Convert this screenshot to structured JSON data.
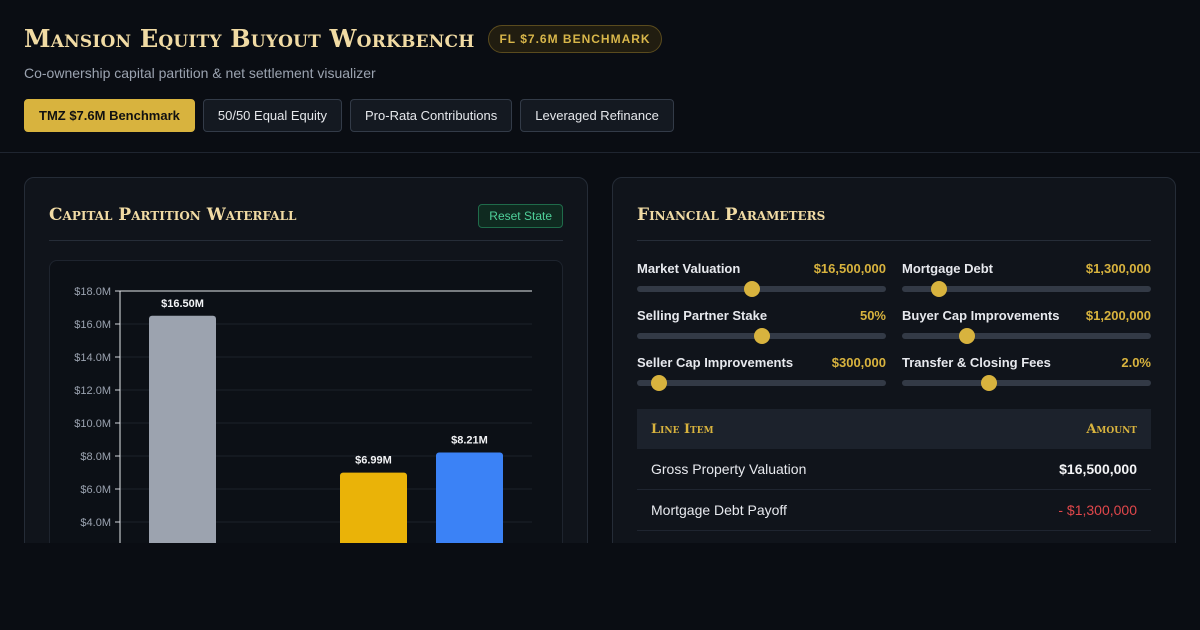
{
  "header": {
    "title": "Mansion Equity Buyout Workbench",
    "badge": "FL $7.6M BENCHMARK",
    "subtitle": "Co-ownership capital partition & net settlement visualizer",
    "scenarios": [
      {
        "label": "TMZ $7.6M Benchmark",
        "active": true
      },
      {
        "label": "50/50 Equal Equity",
        "active": false
      },
      {
        "label": "Pro-Rata Contributions",
        "active": false
      },
      {
        "label": "Leveraged Refinance",
        "active": false
      }
    ]
  },
  "waterfall_panel": {
    "title": "Capital Partition Waterfall",
    "reset_label": "Reset State"
  },
  "chart_data": {
    "type": "bar",
    "title": "",
    "xlabel": "",
    "ylabel": "",
    "ylim": [
      0,
      18
    ],
    "y_ticks": [
      "$4.0M",
      "$6.0M",
      "$8.0M",
      "$10.0M",
      "$12.0M",
      "$14.0M",
      "$16.0M",
      "$18.0M"
    ],
    "y_tick_values": [
      4,
      6,
      8,
      10,
      12,
      14,
      16,
      18
    ],
    "grid": true,
    "bars": [
      {
        "value": 16.5,
        "label": "$16.50M",
        "color": "#9ca3af"
      },
      {
        "value": 6.99,
        "label": "$6.99M",
        "color": "#eab308"
      },
      {
        "value": 8.21,
        "label": "$8.21M",
        "color": "#3b82f6"
      }
    ]
  },
  "params_panel": {
    "title": "Financial Parameters",
    "sliders": [
      {
        "label": "Market Valuation",
        "value": "$16,500,000",
        "fraction": 0.46
      },
      {
        "label": "Mortgage Debt",
        "value": "$1,300,000",
        "fraction": 0.15
      },
      {
        "label": "Selling Partner Stake",
        "value": "50%",
        "fraction": 0.5
      },
      {
        "label": "Buyer Cap Improvements",
        "value": "$1,200,000",
        "fraction": 0.26
      },
      {
        "label": "Seller Cap Improvements",
        "value": "$300,000",
        "fraction": 0.09
      },
      {
        "label": "Transfer & Closing Fees",
        "value": "2.0%",
        "fraction": 0.35
      }
    ],
    "ledger": {
      "col_item": "Line Item",
      "col_amount": "Amount",
      "rows": [
        {
          "item": "Gross Property Valuation",
          "amount": "$16,500,000",
          "negative": false
        },
        {
          "item": "Mortgage Debt Payoff",
          "amount": "- $1,300,000",
          "negative": true
        }
      ]
    }
  },
  "colors": {
    "accent_gold": "#d8b33e",
    "title_cream": "#f1dba4",
    "negative_red": "#e0474b",
    "reset_green": "#4fd19a"
  }
}
